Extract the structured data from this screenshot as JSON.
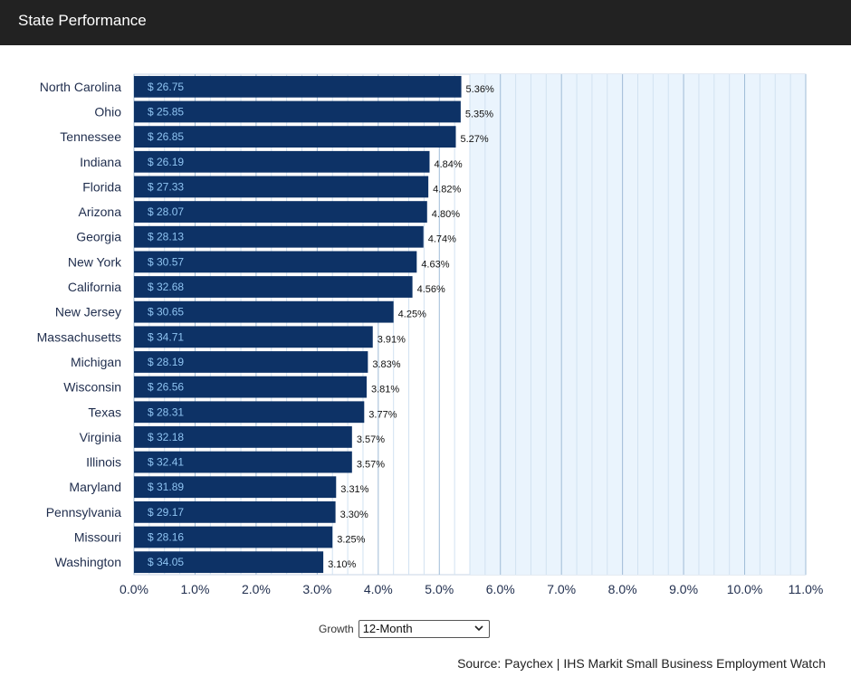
{
  "header": {
    "title": "State Performance"
  },
  "controls": {
    "growth_label": "Growth",
    "growth_selected": "12-Month"
  },
  "source": "Source: Paychex | IHS Markit Small Business Employment Watch",
  "colors": {
    "bar": "#0d3266",
    "plot_bg": "#eaf4fd",
    "bar_label": "#8fc4f2",
    "header": "#222222"
  },
  "chart_data": {
    "type": "bar",
    "orientation": "horizontal",
    "title": "",
    "xlabel": "",
    "ylabel": "",
    "xlim": [
      0,
      11
    ],
    "x_ticks": [
      "0.0%",
      "1.0%",
      "2.0%",
      "3.0%",
      "4.0%",
      "5.0%",
      "6.0%",
      "7.0%",
      "8.0%",
      "9.0%",
      "10.0%",
      "11.0%"
    ],
    "grid": true,
    "categories": [
      "North Carolina",
      "Ohio",
      "Tennessee",
      "Indiana",
      "Florida",
      "Arizona",
      "Georgia",
      "New York",
      "California",
      "New Jersey",
      "Massachusetts",
      "Michigan",
      "Wisconsin",
      "Texas",
      "Virginia",
      "Illinois",
      "Maryland",
      "Pennsylvania",
      "Missouri",
      "Washington"
    ],
    "values": [
      5.36,
      5.35,
      5.27,
      4.84,
      4.82,
      4.8,
      4.74,
      4.63,
      4.56,
      4.25,
      3.91,
      3.83,
      3.81,
      3.77,
      3.57,
      3.57,
      3.31,
      3.3,
      3.25,
      3.1
    ],
    "value_labels": [
      "5.36%",
      "5.35%",
      "5.27%",
      "4.84%",
      "4.82%",
      "4.80%",
      "4.74%",
      "4.63%",
      "4.56%",
      "4.25%",
      "3.91%",
      "3.83%",
      "3.81%",
      "3.77%",
      "3.57%",
      "3.57%",
      "3.31%",
      "3.30%",
      "3.25%",
      "3.10%"
    ],
    "bar_labels": [
      "$ 26.75",
      "$ 25.85",
      "$ 26.85",
      "$ 26.19",
      "$ 27.33",
      "$ 28.07",
      "$ 28.13",
      "$ 30.57",
      "$ 32.68",
      "$ 30.65",
      "$ 34.71",
      "$ 28.19",
      "$ 26.56",
      "$ 28.31",
      "$ 32.18",
      "$ 32.41",
      "$ 31.89",
      "$ 29.17",
      "$ 28.16",
      "$ 34.05"
    ]
  }
}
